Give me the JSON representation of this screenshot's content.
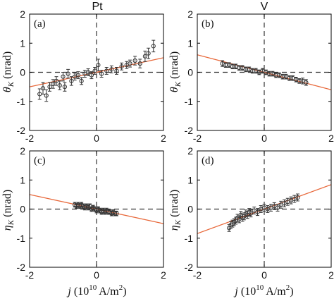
{
  "figure": {
    "columns": [
      {
        "title": "Pt"
      },
      {
        "title": "V"
      }
    ],
    "x_axis_label": {
      "var": "j",
      "rest": " (10",
      "exp": "10",
      "unit": " A/m",
      "unit_exp": "2",
      "close": ")"
    },
    "row_ylabels": [
      {
        "sym": "θ",
        "sub": "K",
        "unit": " (nrad)"
      },
      {
        "sym": "η",
        "sub": "K",
        "unit": " (nrad)"
      }
    ]
  },
  "chart_data": [
    {
      "type": "scatter",
      "panel_label": "(a)",
      "ylabel": "θK (nrad)",
      "xlabel": "",
      "xlim": [
        -2,
        2
      ],
      "ylim": [
        -2,
        2
      ],
      "xticks": [
        -2,
        0,
        2
      ],
      "yticks": [
        -2,
        -1,
        0,
        1,
        2
      ],
      "fit": {
        "slope": 0.25,
        "intercept": 0.0
      },
      "series": [
        {
          "values": [
            [
              -1.7,
              -0.75,
              0.18
            ],
            [
              -1.6,
              -0.55,
              0.2
            ],
            [
              -1.5,
              -0.8,
              0.2
            ],
            [
              -1.4,
              -0.5,
              0.15
            ],
            [
              -1.3,
              -0.4,
              0.15
            ],
            [
              -1.2,
              -0.3,
              0.15
            ],
            [
              -1.1,
              -0.45,
              0.15
            ],
            [
              -1.0,
              -0.15,
              0.15
            ],
            [
              -0.95,
              -0.5,
              0.15
            ],
            [
              -0.85,
              -0.05,
              0.15
            ],
            [
              -0.75,
              -0.3,
              0.15
            ],
            [
              -0.65,
              -0.15,
              0.12
            ],
            [
              -0.55,
              -0.1,
              0.12
            ],
            [
              -0.45,
              -0.3,
              0.12
            ],
            [
              -0.35,
              -0.05,
              0.12
            ],
            [
              -0.25,
              0.0,
              0.12
            ],
            [
              -0.15,
              -0.1,
              0.12
            ],
            [
              -0.05,
              0.05,
              0.12
            ],
            [
              0.05,
              0.25,
              0.2
            ],
            [
              0.15,
              -0.05,
              0.12
            ],
            [
              0.3,
              0.05,
              0.12
            ],
            [
              0.45,
              0.1,
              0.12
            ],
            [
              0.6,
              0.05,
              0.12
            ],
            [
              0.75,
              0.2,
              0.12
            ],
            [
              0.9,
              0.25,
              0.12
            ],
            [
              1.0,
              0.3,
              0.12
            ],
            [
              1.15,
              0.4,
              0.15
            ],
            [
              1.3,
              0.3,
              0.15
            ],
            [
              1.45,
              0.55,
              0.18
            ],
            [
              1.55,
              0.65,
              0.18
            ],
            [
              1.7,
              0.9,
              0.2
            ]
          ]
        }
      ]
    },
    {
      "type": "scatter",
      "panel_label": "(b)",
      "ylabel": "",
      "xlabel": "",
      "xlim": [
        -2,
        2
      ],
      "ylim": [
        -2,
        2
      ],
      "xticks": [
        -2,
        0,
        2
      ],
      "yticks": [
        -2,
        -1,
        0,
        1,
        2
      ],
      "fit": {
        "slope": -0.3,
        "intercept": 0.0
      },
      "series": [
        {
          "values": [
            [
              -1.25,
              0.3,
              0.1
            ],
            [
              -1.15,
              0.25,
              0.08
            ],
            [
              -1.05,
              0.25,
              0.08
            ],
            [
              -0.95,
              0.2,
              0.08
            ],
            [
              -0.85,
              0.2,
              0.08
            ],
            [
              -0.75,
              0.15,
              0.08
            ],
            [
              -0.65,
              0.15,
              0.08
            ],
            [
              -0.55,
              0.1,
              0.08
            ],
            [
              -0.45,
              0.1,
              0.08
            ],
            [
              -0.35,
              0.05,
              0.08
            ],
            [
              -0.25,
              0.05,
              0.08
            ],
            [
              -0.15,
              0.0,
              0.08
            ],
            [
              -0.05,
              0.05,
              0.08
            ],
            [
              0.05,
              0.0,
              0.08
            ],
            [
              0.15,
              -0.05,
              0.08
            ],
            [
              0.25,
              -0.05,
              0.08
            ],
            [
              0.35,
              -0.1,
              0.08
            ],
            [
              0.45,
              -0.1,
              0.08
            ],
            [
              0.55,
              -0.15,
              0.08
            ],
            [
              0.65,
              -0.15,
              0.08
            ],
            [
              0.75,
              -0.2,
              0.08
            ],
            [
              0.85,
              -0.2,
              0.08
            ],
            [
              0.95,
              -0.25,
              0.08
            ],
            [
              1.05,
              -0.3,
              0.08
            ],
            [
              1.15,
              -0.3,
              0.1
            ],
            [
              1.25,
              -0.35,
              0.1
            ]
          ]
        }
      ]
    },
    {
      "type": "scatter",
      "panel_label": "(c)",
      "ylabel": "ηK (nrad)",
      "xlabel": "j (10^10 A/m^2)",
      "xlim": [
        -2,
        2
      ],
      "ylim": [
        -2,
        2
      ],
      "xticks": [
        -2,
        0,
        2
      ],
      "yticks": [
        -2,
        -1,
        0,
        1,
        2
      ],
      "fit": {
        "slope": -0.25,
        "intercept": 0.0
      },
      "series": [
        {
          "values": [
            [
              -0.65,
              0.15,
              0.08
            ],
            [
              -0.6,
              0.1,
              0.08
            ],
            [
              -0.55,
              0.15,
              0.08
            ],
            [
              -0.5,
              0.1,
              0.08
            ],
            [
              -0.45,
              0.15,
              0.08
            ],
            [
              -0.4,
              0.1,
              0.08
            ],
            [
              -0.35,
              0.05,
              0.08
            ],
            [
              -0.3,
              0.1,
              0.08
            ],
            [
              -0.25,
              0.05,
              0.08
            ],
            [
              -0.2,
              0.1,
              0.08
            ],
            [
              -0.15,
              0.0,
              0.08
            ],
            [
              -0.1,
              0.05,
              0.08
            ],
            [
              -0.05,
              0.0,
              0.08
            ],
            [
              0.0,
              -0.05,
              0.08
            ],
            [
              0.05,
              0.0,
              0.08
            ],
            [
              0.1,
              -0.05,
              0.08
            ],
            [
              0.15,
              -0.1,
              0.08
            ],
            [
              0.2,
              -0.05,
              0.08
            ],
            [
              0.25,
              -0.1,
              0.08
            ],
            [
              0.3,
              -0.05,
              0.08
            ],
            [
              0.35,
              -0.1,
              0.08
            ],
            [
              0.4,
              -0.1,
              0.08
            ],
            [
              0.45,
              -0.15,
              0.08
            ],
            [
              0.5,
              -0.1,
              0.08
            ],
            [
              0.55,
              -0.15,
              0.08
            ],
            [
              0.6,
              -0.15,
              0.08
            ]
          ]
        }
      ]
    },
    {
      "type": "scatter",
      "panel_label": "(d)",
      "ylabel": "",
      "xlabel": "j (10^10 A/m^2)",
      "xlim": [
        -2,
        2
      ],
      "ylim": [
        -2,
        2
      ],
      "xticks": [
        -2,
        0,
        2
      ],
      "yticks": [
        -2,
        -1,
        0,
        1,
        2
      ],
      "fit": {
        "slope": 0.42,
        "intercept": 0.0
      },
      "series": [
        {
          "values": [
            [
              -1.05,
              -0.65,
              0.12
            ],
            [
              -1.0,
              -0.55,
              0.12
            ],
            [
              -0.95,
              -0.5,
              0.12
            ],
            [
              -0.9,
              -0.45,
              0.12
            ],
            [
              -0.85,
              -0.4,
              0.12
            ],
            [
              -0.8,
              -0.3,
              0.12
            ],
            [
              -0.75,
              -0.35,
              0.12
            ],
            [
              -0.7,
              -0.2,
              0.12
            ],
            [
              -0.65,
              -0.3,
              0.12
            ],
            [
              -0.6,
              -0.25,
              0.12
            ],
            [
              -0.55,
              -0.15,
              0.12
            ],
            [
              -0.5,
              -0.2,
              0.12
            ],
            [
              -0.45,
              -0.1,
              0.12
            ],
            [
              -0.4,
              -0.15,
              0.12
            ],
            [
              -0.3,
              -0.05,
              0.12
            ],
            [
              -0.2,
              -0.1,
              0.12
            ],
            [
              -0.1,
              0.0,
              0.12
            ],
            [
              0.0,
              0.05,
              0.12
            ],
            [
              0.1,
              0.0,
              0.12
            ],
            [
              0.2,
              0.05,
              0.12
            ],
            [
              0.3,
              0.1,
              0.12
            ],
            [
              0.4,
              0.05,
              0.12
            ],
            [
              0.5,
              0.15,
              0.12
            ],
            [
              0.6,
              0.2,
              0.12
            ],
            [
              0.7,
              0.25,
              0.12
            ],
            [
              0.8,
              0.3,
              0.12
            ],
            [
              0.9,
              0.35,
              0.12
            ],
            [
              1.0,
              0.4,
              0.12
            ]
          ]
        }
      ]
    }
  ],
  "colors": {
    "fit_line": "#e8683a",
    "markers": "#333333"
  }
}
